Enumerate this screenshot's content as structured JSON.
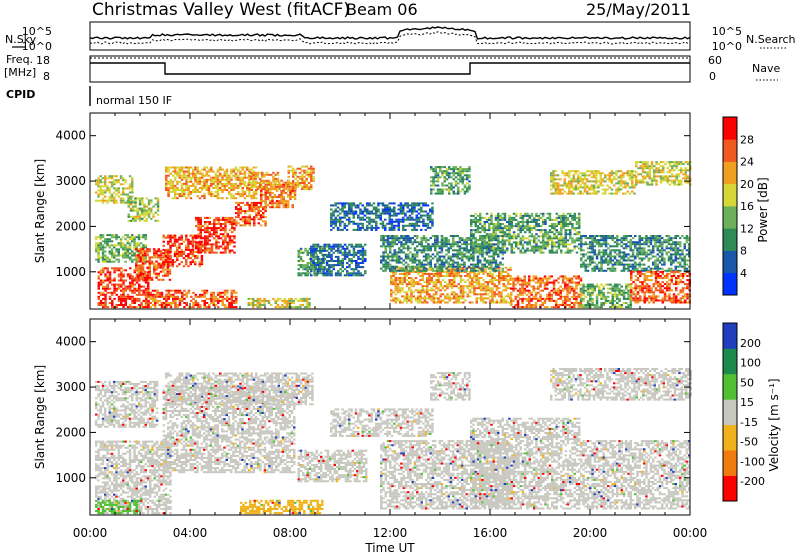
{
  "header": {
    "title": "Christmas Valley West (fitACF)",
    "beam": "Beam 06",
    "date": "25/May/2011"
  },
  "noise_panel": {
    "left_label": "N.Sky",
    "right_label": "N.Search",
    "left_ticks": [
      "10^5",
      "10^0"
    ],
    "right_ticks": [
      "10^5",
      "10^0"
    ]
  },
  "freq_panel": {
    "label_line1": "Freq.",
    "label_line2": "[MHz]",
    "right_label": "Nave",
    "left_ticks": [
      "18",
      "8"
    ],
    "right_ticks": [
      "60",
      "0"
    ]
  },
  "cpid": {
    "label": "CPID",
    "value": "normal 150 IF"
  },
  "colors": {
    "power": [
      "#0033ff",
      "#1a57a8",
      "#2e8b57",
      "#6cb05a",
      "#d6d636",
      "#f0a020",
      "#f05a1e",
      "#ff0000"
    ],
    "velocity": [
      "#1f3fbf",
      "#1c8a4d",
      "#52c034",
      "#c8c8c0",
      "#f0b21a",
      "#f07c10",
      "#ff0000"
    ]
  },
  "chart_data": [
    {
      "type": "heatmap",
      "name": "Power",
      "ylabel": "Slant Range [km]",
      "yticks": [
        1000,
        2000,
        3000,
        4000
      ],
      "colorbar_label": "Power [dB]",
      "colorbar_ticks": [
        "4",
        "8",
        "12",
        "16",
        "20",
        "24",
        "28"
      ],
      "x_range_hours": [
        0,
        24
      ],
      "y_range_km": [
        180,
        4500
      ],
      "regions": [
        {
          "t0": 0.2,
          "t1": 1.7,
          "r0": 2500,
          "r1": 3100,
          "db": 18
        },
        {
          "t0": 1.5,
          "t1": 2.7,
          "r0": 2100,
          "r1": 2600,
          "db": 16
        },
        {
          "t0": 0.2,
          "t1": 2.2,
          "r0": 1200,
          "r1": 1800,
          "db": 14
        },
        {
          "t0": 0.3,
          "t1": 2.3,
          "r0": 200,
          "r1": 1100,
          "db": 28
        },
        {
          "t0": 1.8,
          "t1": 3.2,
          "r0": 800,
          "r1": 1500,
          "db": 26
        },
        {
          "t0": 2.9,
          "t1": 4.5,
          "r0": 1100,
          "r1": 1800,
          "db": 27
        },
        {
          "t0": 4.2,
          "t1": 5.8,
          "r0": 1400,
          "r1": 2200,
          "db": 28
        },
        {
          "t0": 5.8,
          "t1": 7.0,
          "r0": 2000,
          "r1": 2500,
          "db": 26
        },
        {
          "t0": 6.8,
          "t1": 8.2,
          "r0": 2400,
          "r1": 3000,
          "db": 24
        },
        {
          "t0": 7.9,
          "t1": 8.9,
          "r0": 2800,
          "r1": 3300,
          "db": 22
        },
        {
          "t0": 3.0,
          "t1": 6.6,
          "r0": 2600,
          "r1": 3300,
          "db": 21
        },
        {
          "t0": 6.3,
          "t1": 7.5,
          "r0": 2800,
          "r1": 3200,
          "db": 22
        },
        {
          "t0": 2.2,
          "t1": 5.8,
          "r0": 200,
          "r1": 600,
          "db": 26
        },
        {
          "t0": 6.3,
          "t1": 8.8,
          "r0": 200,
          "r1": 420,
          "db": 18
        },
        {
          "t0": 8.3,
          "t1": 9.3,
          "r0": 900,
          "r1": 1500,
          "db": 12
        },
        {
          "t0": 8.8,
          "t1": 11.0,
          "r0": 900,
          "r1": 1600,
          "db": 8
        },
        {
          "t0": 9.6,
          "t1": 13.7,
          "r0": 1900,
          "r1": 2500,
          "db": 7
        },
        {
          "t0": 12.0,
          "t1": 16.8,
          "r0": 300,
          "r1": 1100,
          "db": 22
        },
        {
          "t0": 11.6,
          "t1": 16.5,
          "r0": 1000,
          "r1": 1800,
          "db": 10
        },
        {
          "t0": 13.6,
          "t1": 15.2,
          "r0": 2700,
          "r1": 3300,
          "db": 12
        },
        {
          "t0": 15.2,
          "t1": 19.6,
          "r0": 1400,
          "r1": 2300,
          "db": 12
        },
        {
          "t0": 16.8,
          "t1": 19.6,
          "r0": 200,
          "r1": 900,
          "db": 25
        },
        {
          "t0": 18.4,
          "t1": 21.8,
          "r0": 2700,
          "r1": 3200,
          "db": 19
        },
        {
          "t0": 21.8,
          "t1": 24.0,
          "r0": 2900,
          "r1": 3400,
          "db": 18
        },
        {
          "t0": 19.6,
          "t1": 24.0,
          "r0": 1000,
          "r1": 1800,
          "db": 10
        },
        {
          "t0": 19.6,
          "t1": 21.6,
          "r0": 200,
          "r1": 700,
          "db": 14
        },
        {
          "t0": 21.6,
          "t1": 24.0,
          "r0": 300,
          "r1": 1000,
          "db": 26
        }
      ]
    },
    {
      "type": "heatmap",
      "name": "Velocity",
      "ylabel": "Slant Range [km]",
      "yticks": [
        1000,
        2000,
        3000,
        4000
      ],
      "colorbar_label": "Velocity [m s⁻¹]",
      "colorbar_ticks": [
        "200",
        "100",
        "50",
        "15",
        "-15",
        "-50",
        "-100",
        "-200"
      ],
      "x_range_hours": [
        0,
        24
      ],
      "y_range_km": [
        180,
        4500
      ],
      "xlabel": "Time UT",
      "xticks": [
        "00:00",
        "04:00",
        "08:00",
        "12:00",
        "16:00",
        "20:00",
        "00:00"
      ],
      "regions": [
        {
          "t0": 0.2,
          "t1": 2.7,
          "r0": 2100,
          "r1": 3100,
          "v": 0
        },
        {
          "t0": 0.2,
          "t1": 3.2,
          "r0": 200,
          "r1": 1800,
          "v": 0
        },
        {
          "t0": 0.2,
          "t1": 2.0,
          "r0": 200,
          "r1": 500,
          "v": 60
        },
        {
          "t0": 2.9,
          "t1": 8.2,
          "r0": 1100,
          "r1": 3000,
          "v": -5
        },
        {
          "t0": 3.0,
          "t1": 8.9,
          "r0": 2600,
          "r1": 3300,
          "v": 0
        },
        {
          "t0": 6.0,
          "t1": 9.3,
          "r0": 200,
          "r1": 500,
          "v": -45
        },
        {
          "t0": 8.3,
          "t1": 11.0,
          "r0": 900,
          "r1": 1600,
          "v": 0
        },
        {
          "t0": 9.6,
          "t1": 13.7,
          "r0": 1900,
          "r1": 2500,
          "v": 0
        },
        {
          "t0": 11.6,
          "t1": 16.8,
          "r0": 300,
          "r1": 1800,
          "v": 0
        },
        {
          "t0": 13.6,
          "t1": 15.2,
          "r0": 2700,
          "r1": 3300,
          "v": 0
        },
        {
          "t0": 15.2,
          "t1": 19.6,
          "r0": 300,
          "r1": 2300,
          "v": 0
        },
        {
          "t0": 18.4,
          "t1": 24.0,
          "r0": 2700,
          "r1": 3400,
          "v": 0
        },
        {
          "t0": 19.6,
          "t1": 24.0,
          "r0": 300,
          "r1": 1800,
          "v": 0
        }
      ]
    }
  ]
}
